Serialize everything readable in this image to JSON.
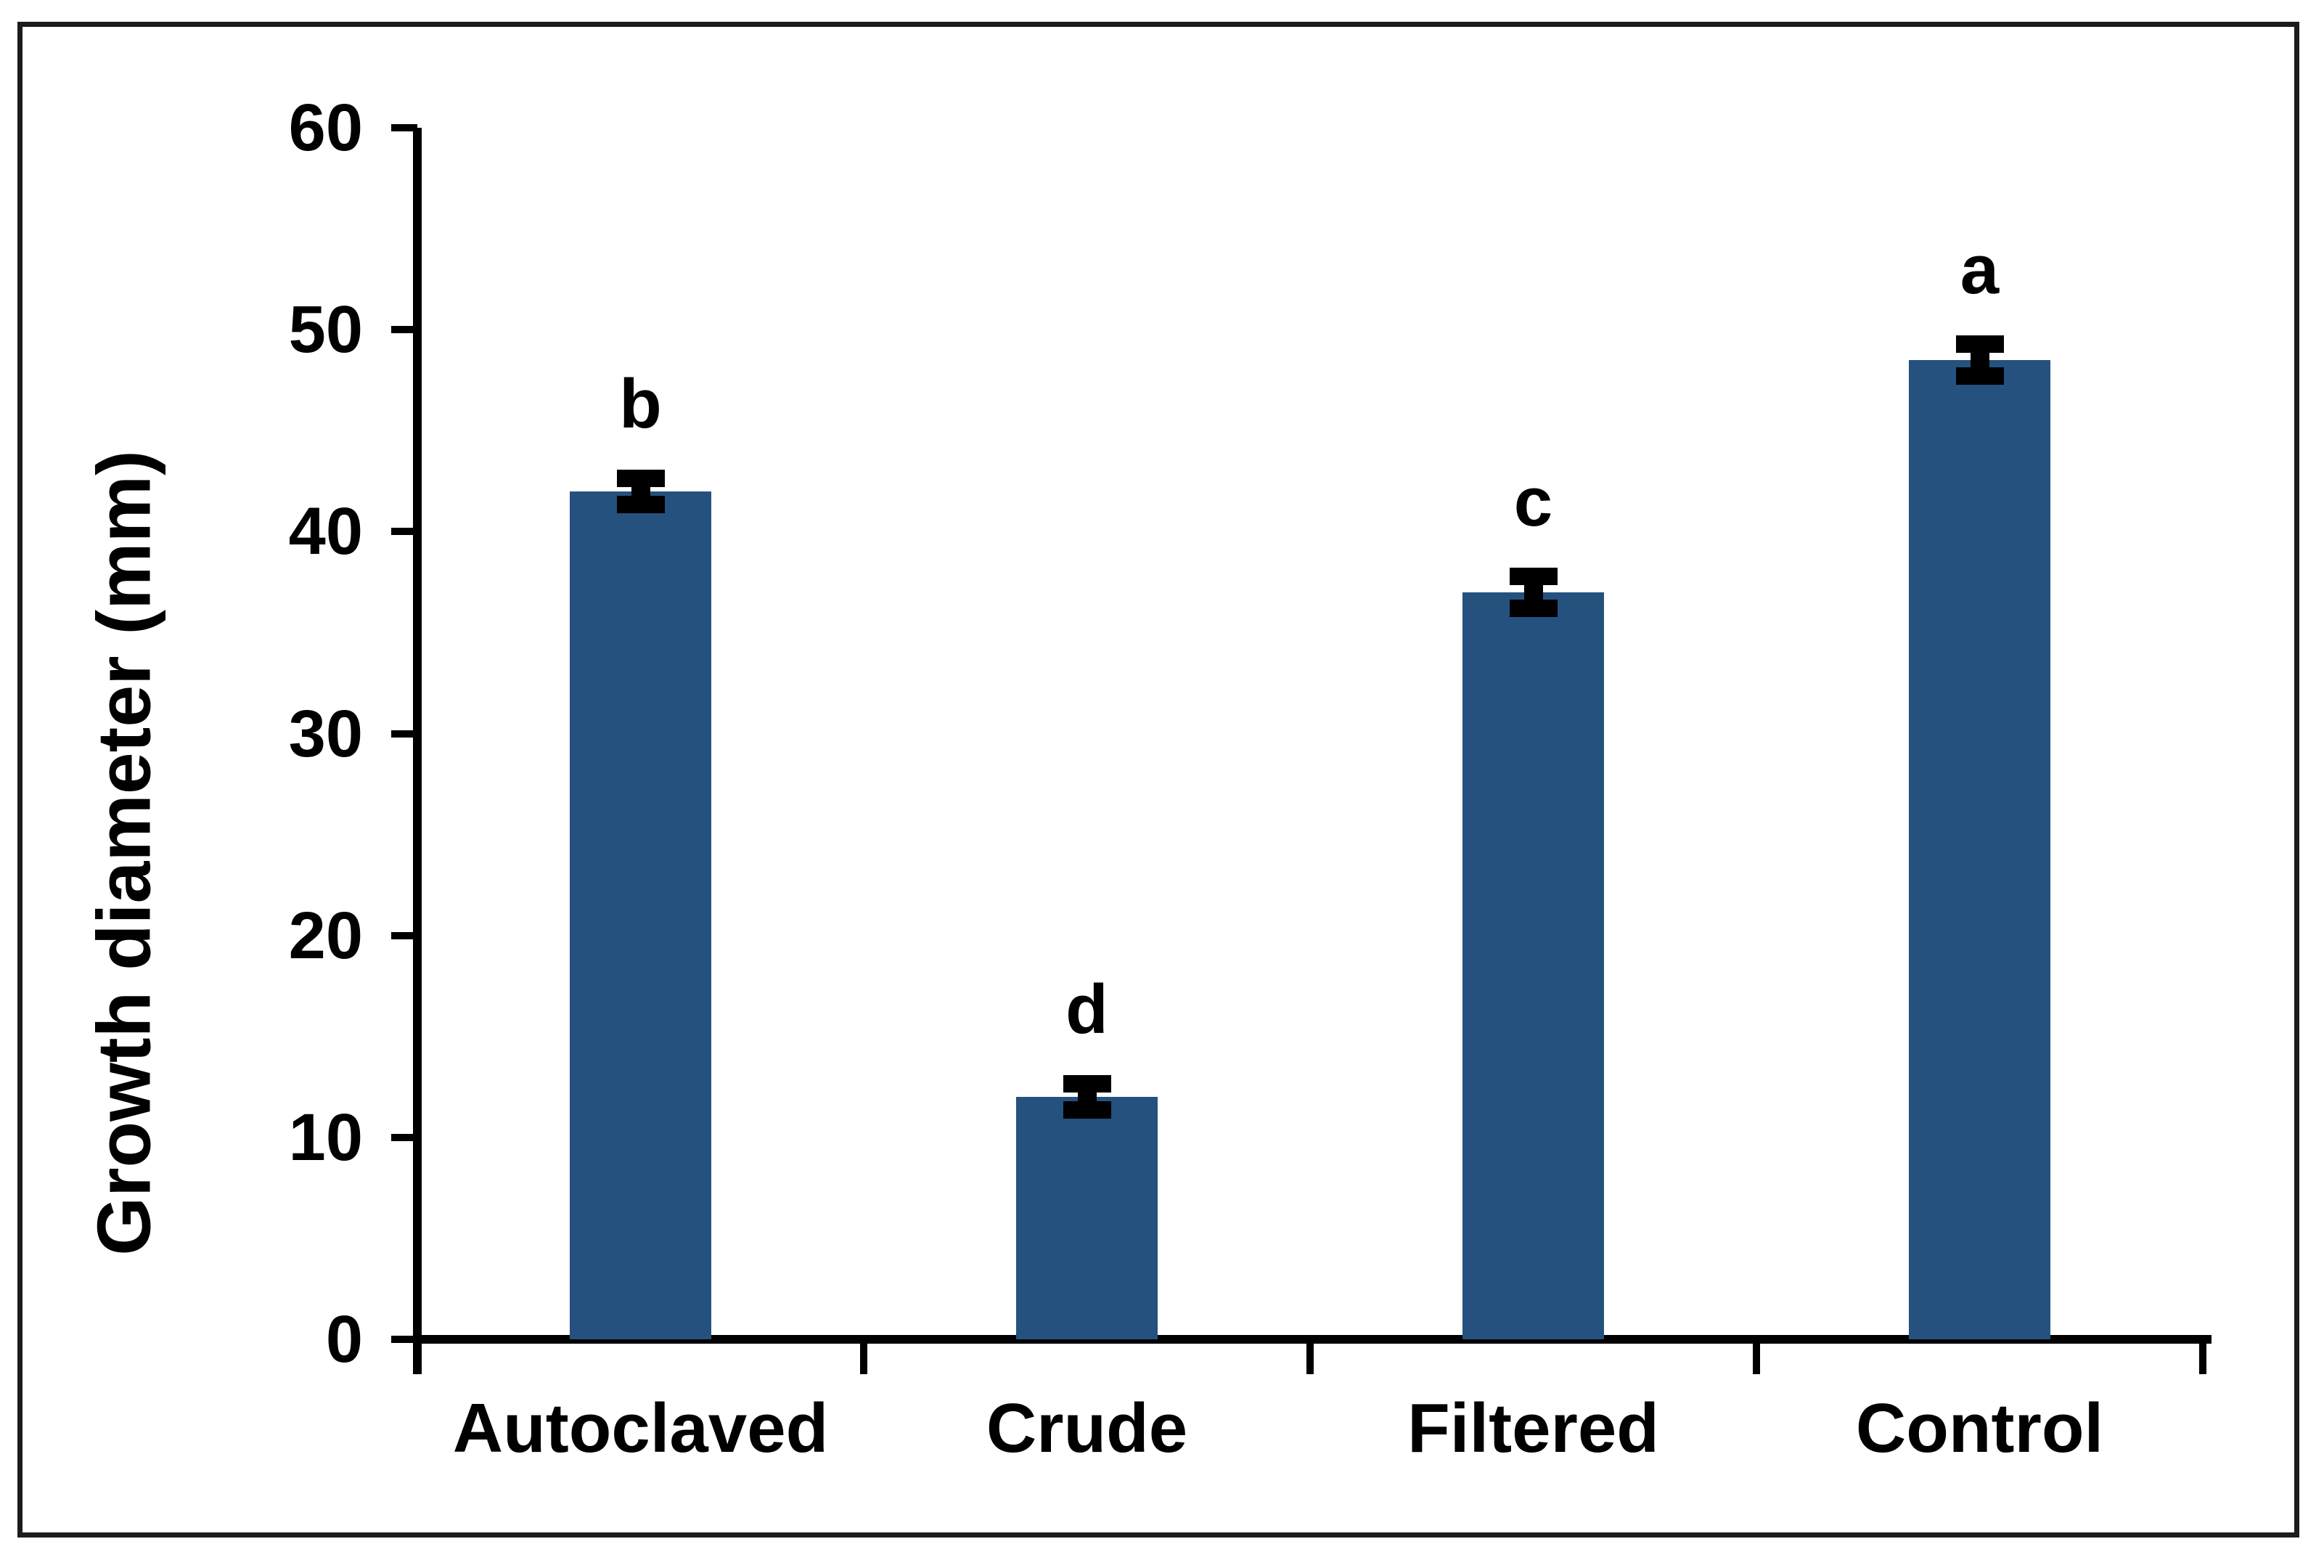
{
  "chart_data": {
    "type": "bar",
    "title": "",
    "categories": [
      "Autoclaved",
      "Crude",
      "Filtered",
      "Control"
    ],
    "values": [
      42,
      12,
      37,
      48.5
    ],
    "error_bars": [
      0.65,
      0.65,
      0.8,
      0.8
    ],
    "significance_letters": [
      "b",
      "d",
      "c",
      "a"
    ],
    "xlabel": "",
    "ylabel": "Growth diameter (mm)",
    "ylim": [
      0,
      60
    ],
    "yticks": [
      0,
      10,
      20,
      30,
      40,
      50,
      60
    ],
    "bar_color": "#25517f",
    "axis_color": "#000000",
    "error_bar_color": "#000000",
    "text_color": "#000000",
    "grid": false,
    "legend": "none"
  }
}
